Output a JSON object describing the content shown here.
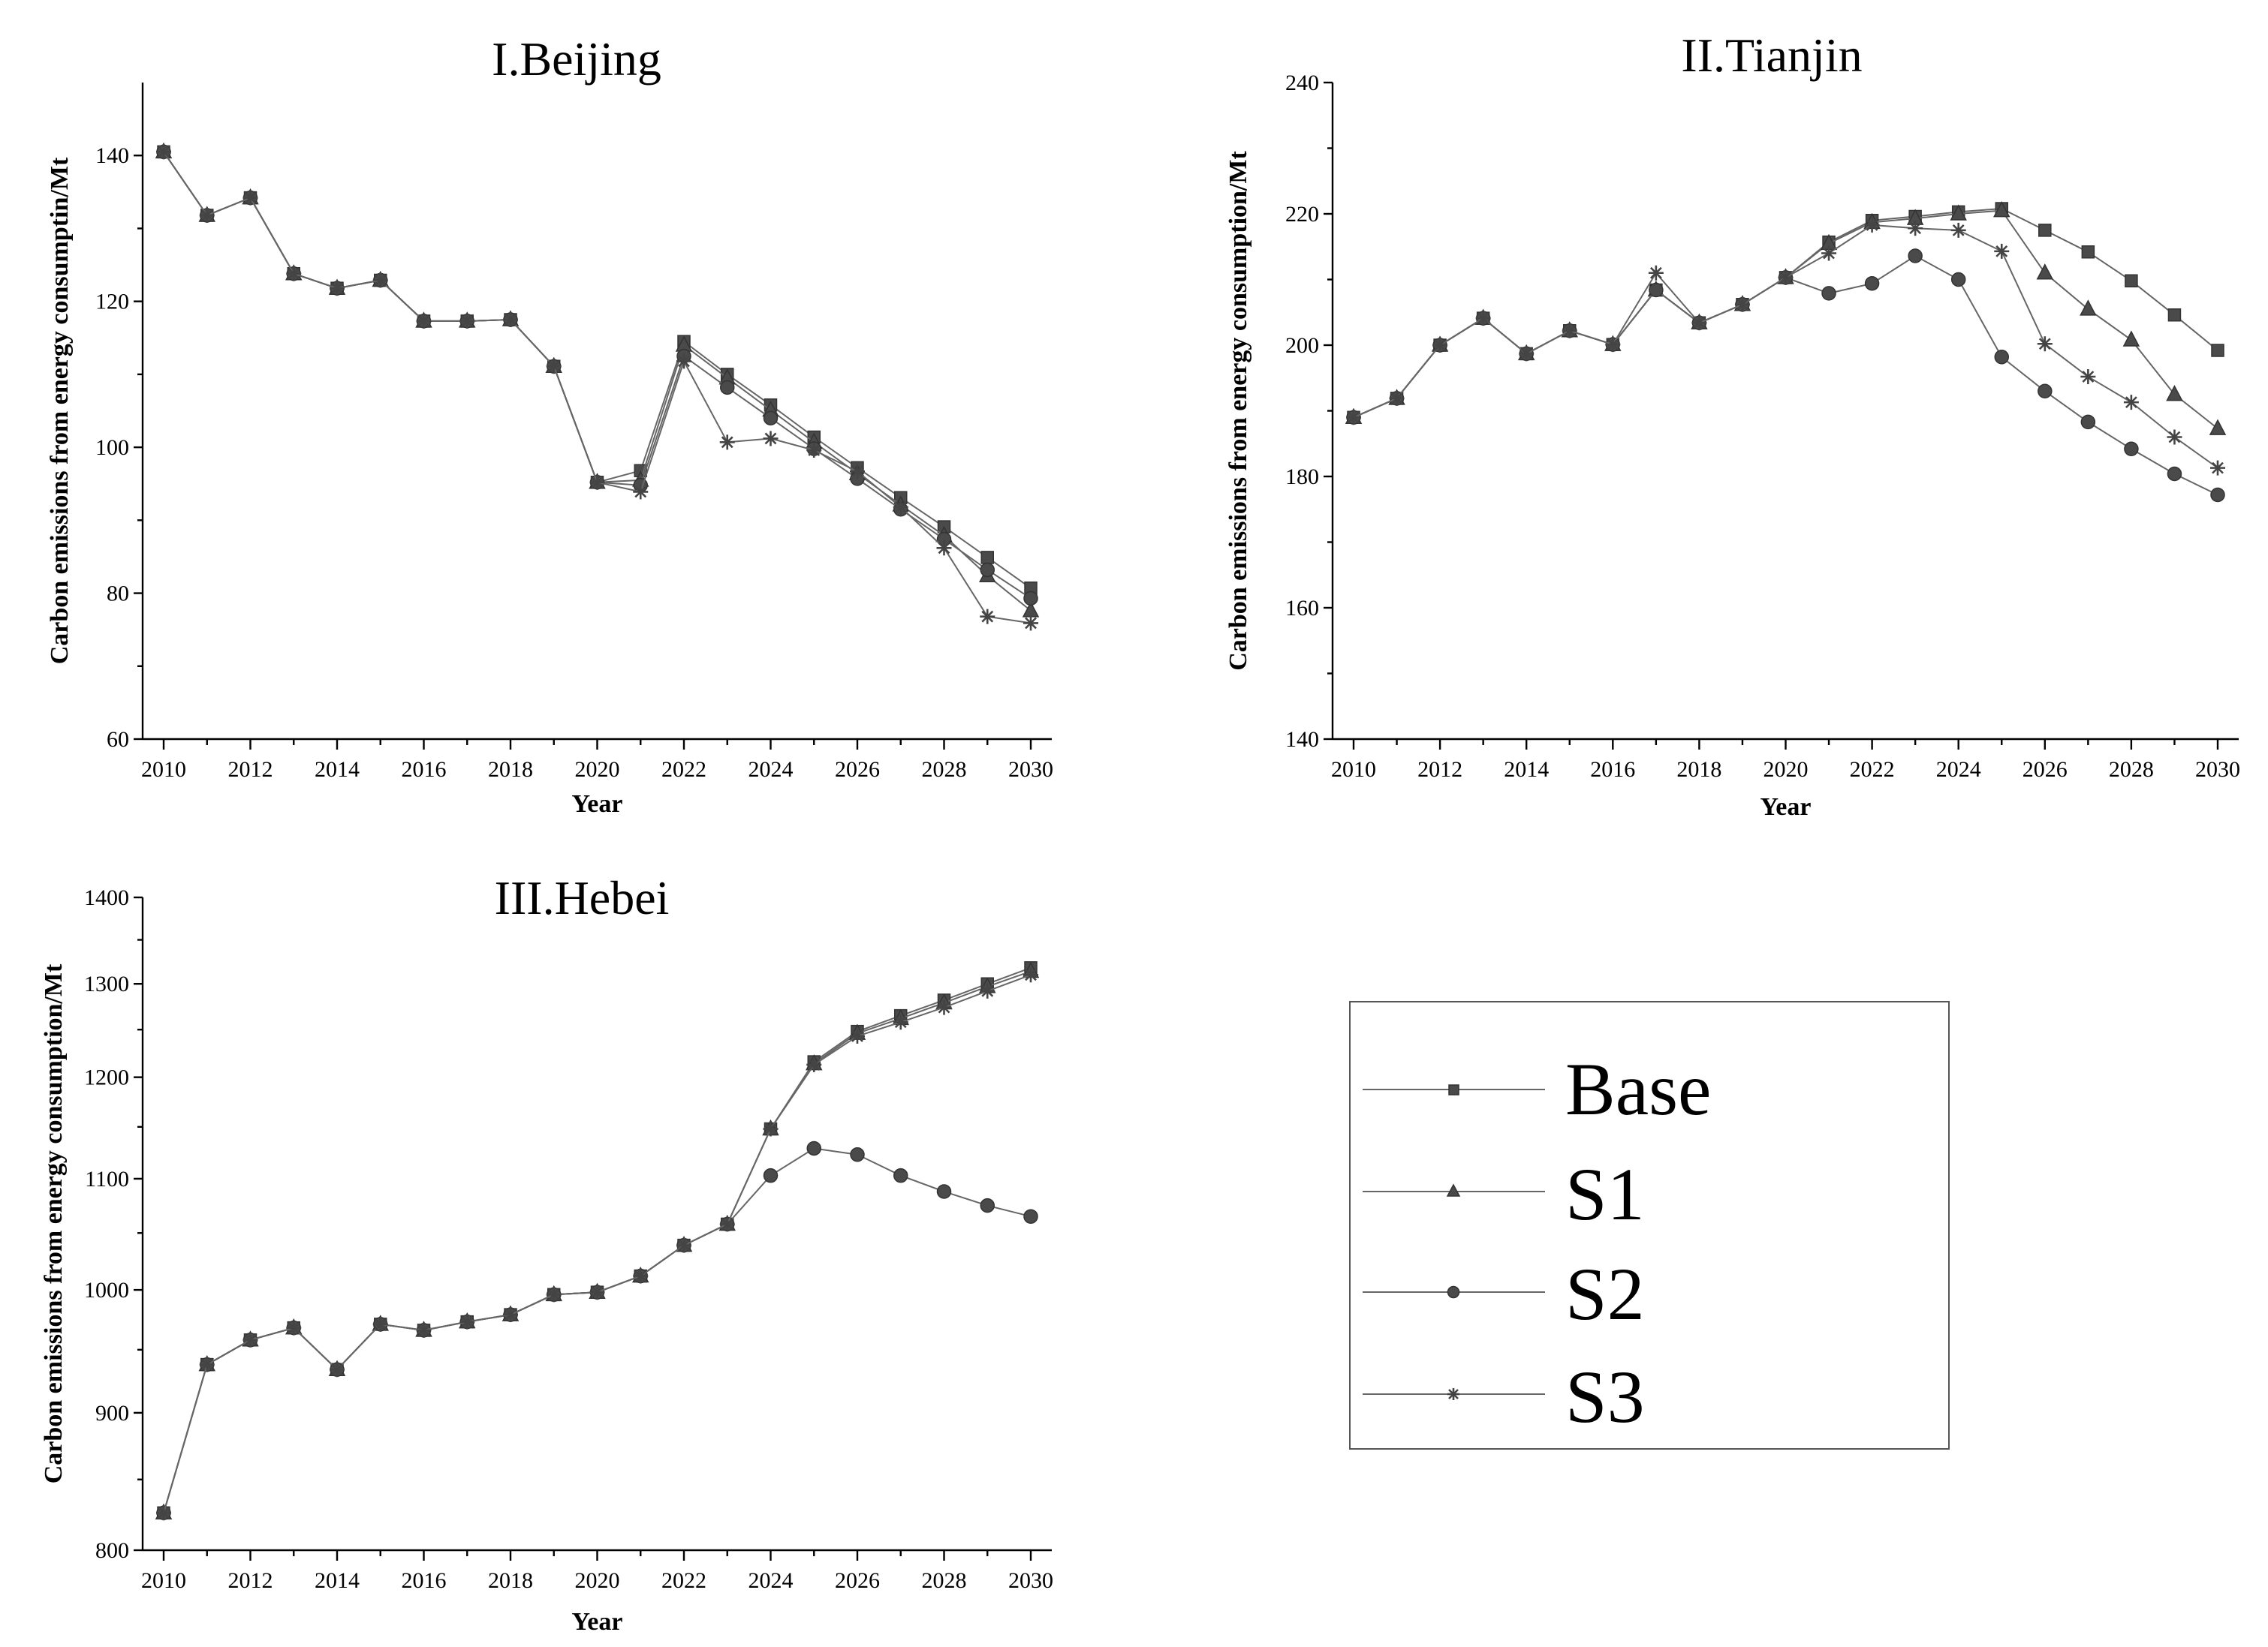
{
  "legend": {
    "entries": [
      {
        "name": "Base",
        "marker": "square"
      },
      {
        "name": "S1",
        "marker": "triangle"
      },
      {
        "name": "S2",
        "marker": "circle"
      },
      {
        "name": "S3",
        "marker": "star"
      }
    ]
  },
  "chart_data": [
    {
      "type": "line",
      "title": "I.Beijing",
      "xlabel": "Year",
      "ylabel": "Carbon emissions from energy consumptin/Mt",
      "xlim": [
        2010,
        2030
      ],
      "ylim": [
        60,
        150
      ],
      "xticks": [
        2010,
        2012,
        2014,
        2016,
        2018,
        2020,
        2022,
        2024,
        2026,
        2028,
        2030
      ],
      "yticks": [
        60,
        80,
        100,
        120,
        140
      ],
      "x": [
        2010,
        2011,
        2012,
        2013,
        2014,
        2015,
        2016,
        2017,
        2018,
        2019,
        2020,
        2021,
        2022,
        2023,
        2024,
        2025,
        2026,
        2027,
        2028,
        2029,
        2030
      ],
      "series": [
        {
          "name": "Base",
          "values": [
            140.5,
            131.8,
            134.2,
            123.8,
            121.8,
            122.9,
            117.3,
            117.3,
            117.5,
            111.1,
            95.2,
            96.8,
            114.5,
            110.0,
            105.8,
            101.4,
            97.2,
            93.1,
            89.1,
            84.9,
            80.7
          ]
        },
        {
          "name": "S1",
          "values": [
            140.5,
            131.8,
            134.2,
            123.8,
            121.8,
            122.9,
            117.3,
            117.3,
            117.5,
            111.1,
            95.2,
            95.5,
            114.0,
            109.5,
            105.1,
            100.7,
            96.4,
            92.1,
            87.9,
            82.4,
            77.6
          ]
        },
        {
          "name": "S2",
          "values": [
            140.5,
            131.8,
            134.2,
            123.8,
            121.8,
            122.9,
            117.3,
            117.3,
            117.5,
            111.1,
            95.2,
            94.8,
            112.5,
            108.2,
            104.0,
            99.8,
            95.7,
            91.5,
            87.4,
            83.2,
            79.3
          ]
        },
        {
          "name": "S3",
          "values": [
            140.5,
            131.8,
            134.2,
            123.8,
            121.8,
            122.9,
            117.3,
            117.3,
            117.5,
            111.1,
            95.2,
            93.9,
            111.8,
            100.7,
            101.2,
            99.6,
            96.7,
            91.8,
            86.2,
            76.8,
            75.9
          ]
        }
      ]
    },
    {
      "type": "line",
      "title": "II.Tianjin",
      "xlabel": "Year",
      "ylabel": "Carbon emissions from energy consumption/Mt",
      "xlim": [
        2010,
        2030
      ],
      "ylim": [
        140,
        240
      ],
      "xticks": [
        2010,
        2012,
        2014,
        2016,
        2018,
        2020,
        2022,
        2024,
        2026,
        2028,
        2030
      ],
      "yticks": [
        140,
        160,
        180,
        200,
        220,
        240
      ],
      "x": [
        2010,
        2011,
        2012,
        2013,
        2014,
        2015,
        2016,
        2017,
        2018,
        2019,
        2020,
        2021,
        2022,
        2023,
        2024,
        2025,
        2026,
        2027,
        2028,
        2029,
        2030
      ],
      "series": [
        {
          "name": "Base",
          "values": [
            189.0,
            191.9,
            200.0,
            204.1,
            198.7,
            202.2,
            200.1,
            208.4,
            203.4,
            206.2,
            210.3,
            215.7,
            219.0,
            219.6,
            220.3,
            220.8,
            217.5,
            214.2,
            209.8,
            204.6,
            199.2
          ]
        },
        {
          "name": "S1",
          "values": [
            189.0,
            191.9,
            200.0,
            204.1,
            198.7,
            202.2,
            200.1,
            208.4,
            203.4,
            206.2,
            210.3,
            215.5,
            218.7,
            219.3,
            220.0,
            220.5,
            211.0,
            205.5,
            200.8,
            192.5,
            187.3
          ]
        },
        {
          "name": "S2",
          "values": [
            189.0,
            191.9,
            200.0,
            204.1,
            198.7,
            202.2,
            200.1,
            208.4,
            203.4,
            206.2,
            210.3,
            207.9,
            209.4,
            213.6,
            210.0,
            198.2,
            193.0,
            188.3,
            184.2,
            180.4,
            177.2
          ]
        },
        {
          "name": "S3",
          "values": [
            189.0,
            191.9,
            200.0,
            204.1,
            198.7,
            202.2,
            200.1,
            211.0,
            203.4,
            206.2,
            210.3,
            214.0,
            218.3,
            217.8,
            217.5,
            214.3,
            200.2,
            195.2,
            191.3,
            186.0,
            181.3
          ]
        }
      ]
    },
    {
      "type": "line",
      "title": "III.Hebei",
      "xlabel": "Year",
      "ylabel": "Carbon emissions from energy consumption/Mt",
      "yscale": "log",
      "xlim": [
        2010,
        2030
      ],
      "ylim": [
        800,
        1400
      ],
      "xticks": [
        2010,
        2012,
        2014,
        2016,
        2018,
        2020,
        2022,
        2024,
        2026,
        2028,
        2030
      ],
      "yticks": [
        800,
        900,
        1000,
        1100,
        1200,
        1300,
        1400
      ],
      "x": [
        2010,
        2011,
        2012,
        2013,
        2014,
        2015,
        2016,
        2017,
        2018,
        2019,
        2020,
        2021,
        2022,
        2023,
        2024,
        2025,
        2026,
        2027,
        2028,
        2029,
        2030
      ],
      "series": [
        {
          "name": "Base",
          "values": [
            826,
            938,
            958,
            968,
            934,
            971,
            966,
            973,
            979,
            996,
            998,
            1012,
            1039,
            1058,
            1148,
            1216,
            1248,
            1265,
            1282,
            1300,
            1318
          ]
        },
        {
          "name": "S1",
          "values": [
            826,
            938,
            958,
            968,
            934,
            971,
            966,
            973,
            979,
            996,
            998,
            1012,
            1039,
            1058,
            1148,
            1214,
            1246,
            1262,
            1279,
            1297,
            1314
          ]
        },
        {
          "name": "S2",
          "values": [
            826,
            938,
            958,
            968,
            934,
            971,
            966,
            973,
            979,
            996,
            998,
            1012,
            1039,
            1058,
            1103,
            1129,
            1123,
            1103,
            1088,
            1075,
            1065
          ]
        },
        {
          "name": "S3",
          "values": [
            826,
            938,
            958,
            968,
            934,
            971,
            966,
            973,
            979,
            996,
            998,
            1012,
            1039,
            1058,
            1148,
            1213,
            1243,
            1258,
            1274,
            1292,
            1310
          ]
        }
      ]
    }
  ]
}
